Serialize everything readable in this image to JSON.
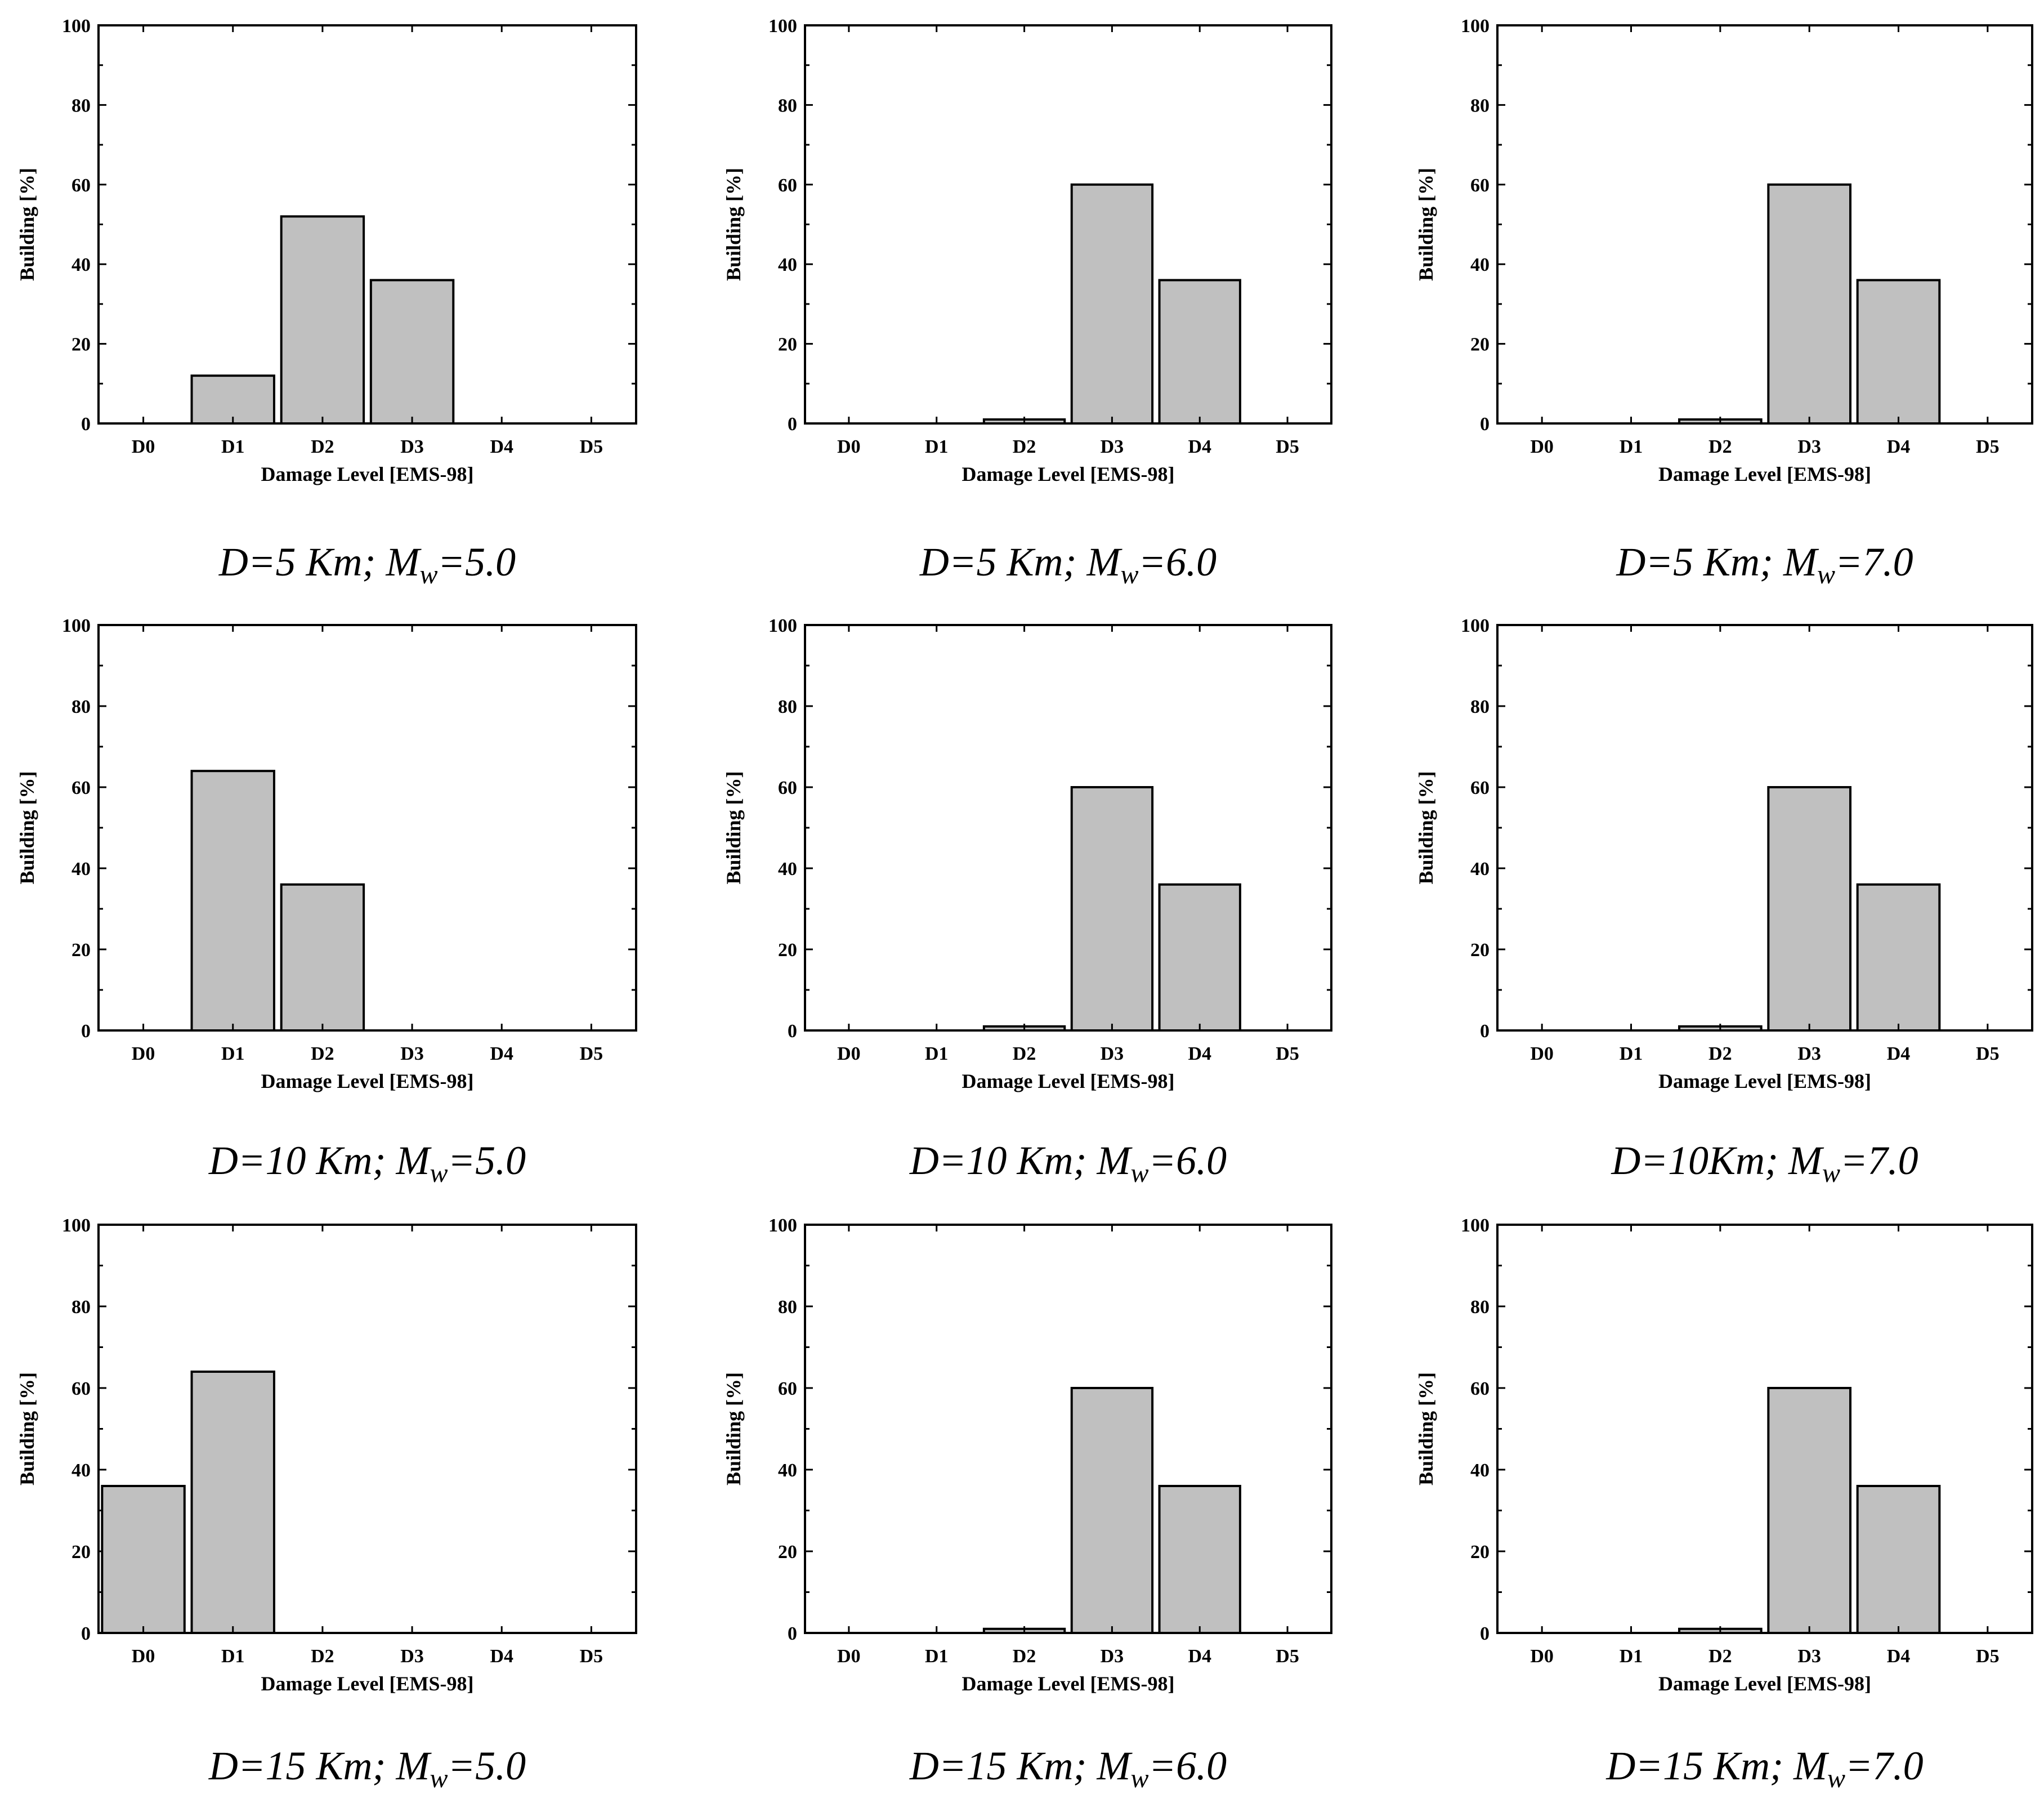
{
  "figure": {
    "panel_count": 9,
    "bar_fill": "#c0c0c0",
    "frame_color": "#000000"
  },
  "chart_data": [
    {
      "type": "bar",
      "categories": [
        "D0",
        "D1",
        "D2",
        "D3",
        "D4",
        "D5"
      ],
      "values": [
        0,
        12,
        52,
        36,
        0,
        0
      ],
      "xlabel": "Damage Level [EMS-98]",
      "ylabel": "Building [%]",
      "ylim": [
        0,
        100
      ],
      "yticks": [
        "0",
        "20",
        "40",
        "60",
        "80",
        "100"
      ],
      "caption": {
        "prefix": "D=5 Km; M",
        "sub": "w",
        "suffix": "=5.0"
      }
    },
    {
      "type": "bar",
      "categories": [
        "D0",
        "D1",
        "D2",
        "D3",
        "D4",
        "D5"
      ],
      "values": [
        0,
        0,
        1,
        60,
        36,
        0
      ],
      "xlabel": "Damage Level [EMS-98]",
      "ylabel": "Building [%]",
      "ylim": [
        0,
        100
      ],
      "yticks": [
        "0",
        "20",
        "40",
        "60",
        "80",
        "100"
      ],
      "caption": {
        "prefix": "D=5 Km; M",
        "sub": "w",
        "suffix": "=6.0"
      }
    },
    {
      "type": "bar",
      "categories": [
        "D0",
        "D1",
        "D2",
        "D3",
        "D4",
        "D5"
      ],
      "values": [
        0,
        0,
        1,
        60,
        36,
        0
      ],
      "xlabel": "Damage Level [EMS-98]",
      "ylabel": "Building [%]",
      "ylim": [
        0,
        100
      ],
      "yticks": [
        "0",
        "20",
        "40",
        "60",
        "80",
        "100"
      ],
      "caption": {
        "prefix": "D=5 Km; M",
        "sub": "w",
        "suffix": "=7.0"
      }
    },
    {
      "type": "bar",
      "categories": [
        "D0",
        "D1",
        "D2",
        "D3",
        "D4",
        "D5"
      ],
      "values": [
        0,
        64,
        36,
        0,
        0,
        0
      ],
      "xlabel": "Damage Level [EMS-98]",
      "ylabel": "Building [%]",
      "ylim": [
        0,
        100
      ],
      "yticks": [
        "0",
        "20",
        "40",
        "60",
        "80",
        "100"
      ],
      "caption": {
        "prefix": "D=10 Km; M",
        "sub": "w",
        "suffix": "=5.0"
      }
    },
    {
      "type": "bar",
      "categories": [
        "D0",
        "D1",
        "D2",
        "D3",
        "D4",
        "D5"
      ],
      "values": [
        0,
        0,
        1,
        60,
        36,
        0
      ],
      "xlabel": "Damage Level [EMS-98]",
      "ylabel": "Building [%]",
      "ylim": [
        0,
        100
      ],
      "yticks": [
        "0",
        "20",
        "40",
        "60",
        "80",
        "100"
      ],
      "caption": {
        "prefix": "D=10 Km; M",
        "sub": "w",
        "suffix": "=6.0"
      }
    },
    {
      "type": "bar",
      "categories": [
        "D0",
        "D1",
        "D2",
        "D3",
        "D4",
        "D5"
      ],
      "values": [
        0,
        0,
        1,
        60,
        36,
        0
      ],
      "xlabel": "Damage Level [EMS-98]",
      "ylabel": "Building [%]",
      "ylim": [
        0,
        100
      ],
      "yticks": [
        "0",
        "20",
        "40",
        "60",
        "80",
        "100"
      ],
      "caption": {
        "prefix": "D=10Km; M",
        "sub": "w",
        "suffix": "=7.0"
      }
    },
    {
      "type": "bar",
      "categories": [
        "D0",
        "D1",
        "D2",
        "D3",
        "D4",
        "D5"
      ],
      "values": [
        36,
        64,
        0,
        0,
        0,
        0
      ],
      "xlabel": "Damage Level [EMS-98]",
      "ylabel": "Building [%]",
      "ylim": [
        0,
        100
      ],
      "yticks": [
        "0",
        "20",
        "40",
        "60",
        "80",
        "100"
      ],
      "caption": {
        "prefix": "D=15 Km; M",
        "sub": "w",
        "suffix": "=5.0"
      }
    },
    {
      "type": "bar",
      "categories": [
        "D0",
        "D1",
        "D2",
        "D3",
        "D4",
        "D5"
      ],
      "values": [
        0,
        0,
        1,
        60,
        36,
        0
      ],
      "xlabel": "Damage Level [EMS-98]",
      "ylabel": "Building [%]",
      "ylim": [
        0,
        100
      ],
      "yticks": [
        "0",
        "20",
        "40",
        "60",
        "80",
        "100"
      ],
      "caption": {
        "prefix": "D=15 Km; M",
        "sub": "w",
        "suffix": "=6.0"
      }
    },
    {
      "type": "bar",
      "categories": [
        "D0",
        "D1",
        "D2",
        "D3",
        "D4",
        "D5"
      ],
      "values": [
        0,
        0,
        1,
        60,
        36,
        0
      ],
      "xlabel": "Damage Level [EMS-98]",
      "ylabel": "Building [%]",
      "ylim": [
        0,
        100
      ],
      "yticks": [
        "0",
        "20",
        "40",
        "60",
        "80",
        "100"
      ],
      "caption": {
        "prefix": "D=15 Km; M",
        "sub": "w",
        "suffix": "=7.0"
      }
    }
  ]
}
